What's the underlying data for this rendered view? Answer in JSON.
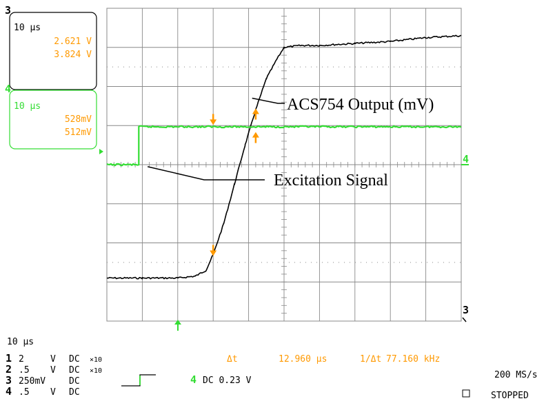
{
  "chart_data": {
    "type": "line",
    "title": "",
    "xlabel": "",
    "ylabel": "",
    "grid": true,
    "time_per_div": "10 μs",
    "divisions": {
      "x": 10,
      "y": 8
    },
    "series": [
      {
        "channel": "3",
        "color": "#000000",
        "x_div": [
          0,
          1,
          2,
          2.5,
          2.8,
          3.0,
          3.3,
          3.6,
          3.9,
          4.2,
          4.5,
          4.8,
          5.0,
          5.5,
          6,
          7,
          8,
          9,
          10
        ],
        "y_div": [
          -2.9,
          -2.9,
          -2.9,
          -2.85,
          -2.7,
          -2.3,
          -1.5,
          -0.5,
          0.5,
          1.4,
          2.2,
          2.7,
          3.0,
          3.05,
          3.05,
          3.1,
          3.15,
          3.25,
          3.3
        ]
      },
      {
        "channel": "4",
        "color": "#33dd33",
        "x_div": [
          0,
          0.9,
          0.9,
          10
        ],
        "y_div": [
          0,
          0,
          0.97,
          0.97
        ]
      }
    ],
    "annotations": [
      {
        "text": "ACS754 Output (mV)",
        "point_div": [
          1.9,
          1.7
        ]
      },
      {
        "text": "Excitation Signal",
        "point_div": [
          1.15,
          -0.05
        ]
      }
    ],
    "cursor_markers": [
      {
        "color": "#ff9900",
        "direction": "down",
        "x_div": 3.0,
        "y_div": -2.3
      },
      {
        "color": "#ff9900",
        "direction": "up",
        "x_div": 4.2,
        "y_div": 1.4
      },
      {
        "color": "#ff9900",
        "direction": "down",
        "x_div": 3.0,
        "y_div": 1.05
      },
      {
        "color": "#ff9900",
        "direction": "up",
        "x_div": 4.2,
        "y_div": 0.8
      }
    ]
  },
  "ch3_box": {
    "label": "3",
    "time": "10 μs",
    "v1": "2.621 V",
    "v2": "3.824 V"
  },
  "ch4_box": {
    "label": "4",
    "time": "10 μs",
    "v1": "528mV",
    "v2": "512mV"
  },
  "right_markers": {
    "ch4": "4",
    "ch3": "3"
  },
  "bottom": {
    "timebase": "10 μs",
    "channels": [
      {
        "num": "1",
        "scale": "2",
        "unit": "V",
        "coupling": "DC",
        "probe": "×10"
      },
      {
        "num": "2",
        "scale": ".5",
        "unit": "V",
        "coupling": "DC",
        "probe": "×10"
      },
      {
        "num": "3",
        "scale": "250mV",
        "unit": "",
        "coupling": "DC",
        "probe": ""
      },
      {
        "num": "4",
        "scale": ".5",
        "unit": "V",
        "coupling": "DC",
        "probe": ""
      }
    ],
    "delta_label": "Δt",
    "delta_value": "12.960 μs",
    "inv_label": "1/Δt",
    "inv_value": "77.160 kHz",
    "trigger_ch": "4",
    "trigger_text": "DC 0.23 V",
    "sample_rate": "200 MS/s",
    "status": "STOPPED"
  },
  "colors": {
    "cursor": "#ff9900",
    "ch4": "#33dd33",
    "trace": "#000000",
    "grid": "#888888"
  }
}
